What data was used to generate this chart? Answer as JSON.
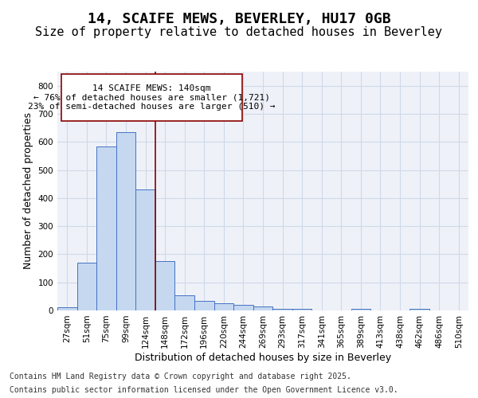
{
  "title_line1": "14, SCAIFE MEWS, BEVERLEY, HU17 0GB",
  "title_line2": "Size of property relative to detached houses in Beverley",
  "xlabel": "Distribution of detached houses by size in Beverley",
  "ylabel": "Number of detached properties",
  "bar_values": [
    10,
    170,
    585,
    635,
    430,
    175,
    55,
    35,
    25,
    20,
    15,
    5,
    5,
    0,
    0,
    5,
    0,
    0,
    5
  ],
  "categories": [
    "27sqm",
    "51sqm",
    "75sqm",
    "99sqm",
    "124sqm",
    "148sqm",
    "172sqm",
    "196sqm",
    "220sqm",
    "244sqm",
    "269sqm",
    "293sqm",
    "317sqm",
    "341sqm",
    "365sqm",
    "389sqm",
    "413sqm",
    "438sqm",
    "462sqm"
  ],
  "bar_color": "#c5d8f0",
  "bar_edge_color": "#4472c4",
  "vline_color": "#8b0000",
  "annotation_box_text": "14 SCAIFE MEWS: 140sqm\n← 76% of detached houses are smaller (1,721)\n23% of semi-detached houses are larger (510) →",
  "annotation_box_color": "#ffffff",
  "annotation_box_edge_color": "#8b0000",
  "ylim": [
    0,
    850
  ],
  "yticks": [
    0,
    100,
    200,
    300,
    400,
    500,
    600,
    700,
    800
  ],
  "extra_xtick_labels": [
    "486sqm",
    "510sqm"
  ],
  "grid_color": "#d0d8e8",
  "background_color": "#eef2f8",
  "footer_line1": "Contains HM Land Registry data © Crown copyright and database right 2025.",
  "footer_line2": "Contains public sector information licensed under the Open Government Licence v3.0.",
  "title_fontsize": 13,
  "subtitle_fontsize": 11,
  "axis_label_fontsize": 9,
  "tick_fontsize": 7.5,
  "annotation_fontsize": 8,
  "footer_fontsize": 7
}
